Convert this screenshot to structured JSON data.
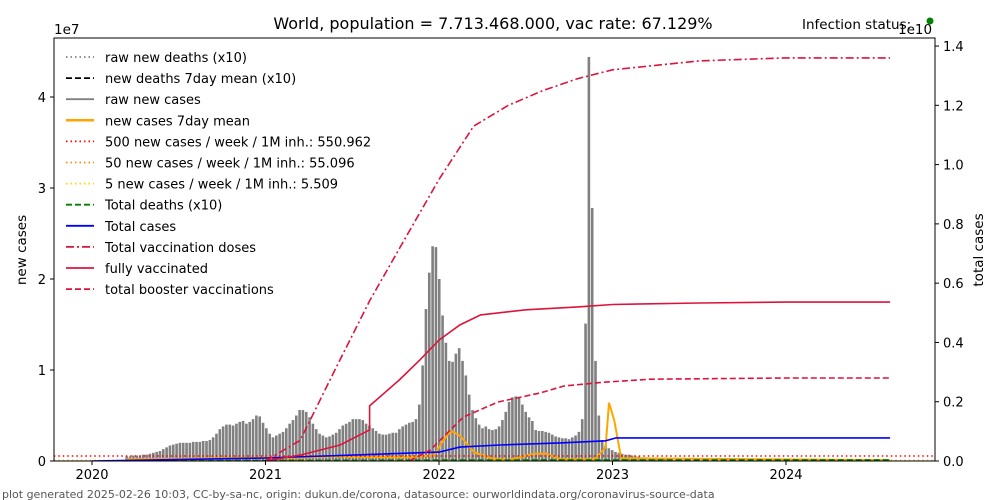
{
  "chart_data": {
    "type": "bar+line",
    "title": "World, population = 7.713.468.000, vac rate: 67.129%",
    "status_label": "Infection status:",
    "status_color": "#008000",
    "footer": "plot generated 2025-02-26 10:03, CC-by-sa-nc, origin: dukun.de/corona, datasource: ourworldindata.org/coronavirus-source-data",
    "ylabel_left": "new cases",
    "ylabel_right": "total cases",
    "left_multiplier": "1e7",
    "right_multiplier": "1e10",
    "ylim_left": [
      0,
      46500000
    ],
    "ylim_right": [
      0,
      14000000000
    ],
    "xlim": [
      2019.78,
      2024.86
    ],
    "x_ticks": [
      "2020",
      "2021",
      "2022",
      "2023",
      "2024"
    ],
    "y_ticks_left": [
      "0",
      "1",
      "2",
      "3",
      "4"
    ],
    "y_ticks_right": [
      "0.0",
      "0.2",
      "0.4",
      "0.6",
      "0.8",
      "1.0",
      "1.2",
      "1.4"
    ],
    "legend_position": "upper-left",
    "legend": [
      {
        "label": "raw new deaths (x10)",
        "color": "#808080",
        "style": "dotted"
      },
      {
        "label": "new deaths 7day mean (x10)",
        "color": "#000000",
        "style": "dashed"
      },
      {
        "label": "raw new cases",
        "color": "#808080",
        "style": "solid"
      },
      {
        "label": "new cases 7day mean",
        "color": "#FFA500",
        "style": "solid"
      },
      {
        "label": "500 new cases / week / 1M inh.: 550.962",
        "color": "#FF0000",
        "style": "dotted"
      },
      {
        "label": "50 new cases / week / 1M inh.: 55.096",
        "color": "#FF8C00",
        "style": "dotted"
      },
      {
        "label": "5 new cases / week / 1M inh.: 5.509",
        "color": "#FFD700",
        "style": "dotted"
      },
      {
        "label": "Total deaths (x10)",
        "color": "#008000",
        "style": "dashed"
      },
      {
        "label": "Total cases",
        "color": "#0000FF",
        "style": "solid"
      },
      {
        "label": "Total vaccination doses",
        "color": "#DC143C",
        "style": "dashdot"
      },
      {
        "label": "fully vaccinated",
        "color": "#DC143C",
        "style": "solid"
      },
      {
        "label": "total booster vaccinations",
        "color": "#DC143C",
        "style": "dashed"
      }
    ],
    "raw_new_cases": {
      "unit": "millions per week",
      "start_year": 2020.2,
      "step_weeks": 1,
      "values": [
        0.5,
        0.5,
        0.6,
        0.6,
        0.6,
        0.7,
        0.7,
        0.8,
        0.9,
        1.0,
        1.1,
        1.3,
        1.5,
        1.7,
        1.8,
        1.9,
        2.0,
        2.0,
        2.0,
        2.0,
        2.1,
        2.1,
        2.1,
        2.2,
        2.2,
        2.3,
        2.6,
        3.0,
        3.5,
        3.8,
        4.0,
        4.0,
        3.9,
        4.1,
        4.3,
        4.4,
        4.1,
        4.3,
        4.6,
        5.0,
        4.9,
        4.2,
        3.6,
        3.0,
        2.6,
        2.8,
        3.0,
        3.2,
        3.6,
        4.1,
        4.5,
        5.0,
        5.6,
        5.6,
        5.4,
        4.8,
        4.1,
        3.5,
        3.0,
        2.8,
        2.6,
        2.7,
        2.9,
        3.1,
        3.5,
        3.9,
        4.1,
        4.3,
        4.6,
        4.6,
        4.6,
        4.5,
        4.1,
        3.9,
        3.6,
        3.3,
        3.0,
        2.9,
        2.9,
        3.0,
        3.1,
        3.1,
        3.5,
        3.8,
        4.0,
        4.2,
        4.3,
        4.6,
        6.2,
        10.5,
        16.7,
        20.7,
        23.6,
        23.5,
        20.0,
        16.0,
        13.0,
        11.0,
        10.9,
        11.8,
        12.4,
        11.0,
        9.4,
        7.3,
        5.6,
        4.7,
        4.0,
        3.6,
        3.8,
        3.5,
        3.4,
        3.5,
        3.8,
        4.5,
        5.4,
        6.5,
        7.0,
        7.1,
        7.0,
        6.2,
        5.4,
        4.8,
        4.4,
        3.4,
        3.3,
        3.3,
        3.2,
        3.1,
        2.9,
        2.7,
        2.6,
        2.5,
        2.5,
        2.4,
        2.6,
        2.8,
        3.2,
        4.6,
        15.1,
        44.4,
        27.8,
        11.0,
        5.0,
        2.3,
        1.7,
        1.4,
        1.2,
        1.0,
        0.9,
        0.8,
        0.7,
        0.7,
        0.6,
        0.5,
        0.5,
        0.4,
        0.4,
        0.3,
        0.3,
        0.3,
        0.2,
        0.2,
        0.2,
        0.2,
        0.1,
        0.1,
        0.1,
        0.1,
        0.1,
        0.1
      ]
    },
    "series_left": [
      {
        "name": "new cases 7day mean",
        "unit": "millions",
        "color": "#FFA500",
        "x": [
          2020.2,
          2020.8,
          2021.0,
          2021.2,
          2021.4,
          2021.8,
          2021.97,
          2022.03,
          2022.07,
          2022.12,
          2022.2,
          2022.3,
          2022.4,
          2022.55,
          2022.62,
          2022.7,
          2022.9,
          2022.96,
          2022.98,
          2023.01,
          2023.05,
          2024.6
        ],
        "y": [
          0.2,
          0.3,
          0.4,
          0.35,
          0.5,
          0.4,
          0.6,
          2.4,
          3.3,
          2.8,
          1.0,
          0.3,
          0.1,
          0.8,
          0.8,
          0.2,
          0.2,
          1.5,
          6.4,
          4.5,
          0.3,
          0.1
        ]
      },
      {
        "name": "500 new cases / week / 1M inh.",
        "unit": "millions",
        "color": "#FF0000",
        "style": "dotted",
        "x": [
          2019.78,
          2024.86
        ],
        "y": [
          0.551,
          0.551
        ]
      },
      {
        "name": "50 new cases / week / 1M inh.",
        "unit": "millions",
        "color": "#FF8C00",
        "style": "dotted",
        "x": [
          2019.78,
          2024.86
        ],
        "y": [
          0.055,
          0.055
        ]
      },
      {
        "name": "5 new cases / week / 1M inh.",
        "unit": "millions",
        "color": "#FFD700",
        "style": "dotted",
        "x": [
          2019.78,
          2024.86
        ],
        "y": [
          0.006,
          0.006
        ]
      },
      {
        "name": "Total deaths (x10)",
        "unit": "millions",
        "color": "#008000",
        "style": "dashed",
        "x": [
          2020.2,
          2021.0,
          2022.0,
          2023.0,
          2024.6
        ],
        "y": [
          0.0,
          0.05,
          0.1,
          0.12,
          0.12
        ]
      }
    ],
    "series_right": [
      {
        "name": "Total cases",
        "unit": "billions",
        "color": "#0000FF",
        "style": "solid",
        "x": [
          2020.0,
          2021.0,
          2022.0,
          2022.12,
          2022.35,
          2022.7,
          2022.96,
          2023.02,
          2023.5,
          2024.6
        ],
        "y": [
          0.0,
          0.1,
          0.3,
          0.47,
          0.54,
          0.61,
          0.68,
          0.78,
          0.78,
          0.78
        ]
      },
      {
        "name": "Total vaccination doses",
        "unit": "billions",
        "color": "#DC143C",
        "style": "dashdot",
        "x": [
          2021.0,
          2021.2,
          2021.4,
          2021.6,
          2021.8,
          2022.0,
          2022.2,
          2022.4,
          2022.6,
          2022.8,
          2023.0,
          2023.5,
          2024.0,
          2024.6
        ],
        "y": [
          0.0,
          0.7,
          3.07,
          5.4,
          7.46,
          9.5,
          11.3,
          12.0,
          12.5,
          12.9,
          13.2,
          13.5,
          13.6,
          13.6
        ]
      },
      {
        "name": "fully vaccinated",
        "unit": "billions",
        "color": "#DC143C",
        "style": "solid",
        "x": [
          2021.0,
          2021.2,
          2021.43,
          2021.6,
          2021.6,
          2021.77,
          2021.89,
          2022.0,
          2022.12,
          2022.24,
          2022.5,
          2022.8,
          2023.0,
          2023.5,
          2024.0,
          2024.6
        ],
        "y": [
          0.0,
          0.2,
          0.54,
          1.05,
          1.86,
          2.73,
          3.41,
          4.08,
          4.59,
          4.93,
          5.1,
          5.2,
          5.28,
          5.33,
          5.36,
          5.36
        ]
      },
      {
        "name": "total booster vaccinations",
        "unit": "billions",
        "color": "#DC143C",
        "style": "dashed",
        "x": [
          2021.83,
          2021.95,
          2022.14,
          2022.34,
          2022.58,
          2022.72,
          2022.95,
          2023.22,
          2024.0,
          2024.6
        ],
        "y": [
          0.0,
          0.37,
          1.48,
          1.99,
          2.29,
          2.53,
          2.66,
          2.76,
          2.8,
          2.8
        ]
      }
    ]
  }
}
